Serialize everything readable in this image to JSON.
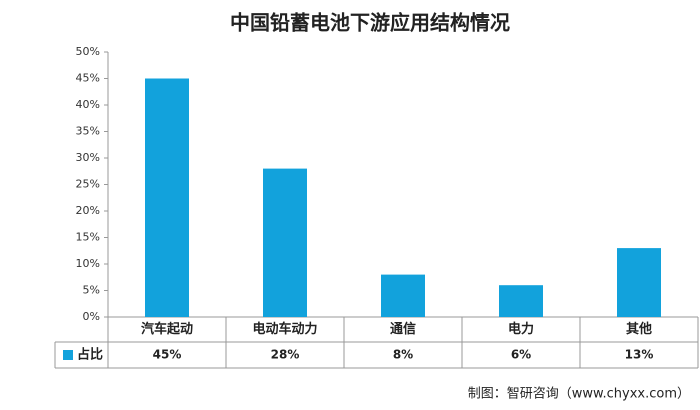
{
  "chart_data": {
    "type": "bar",
    "title": "中国铅蓄电池下游应用结构情况",
    "categories": [
      "汽车起动",
      "电动车动力",
      "通信",
      "电力",
      "其他"
    ],
    "series": [
      {
        "name": "占比",
        "color": "#12a2dc",
        "values": [
          45,
          28,
          8,
          6,
          13
        ],
        "value_labels": [
          "45%",
          "28%",
          "8%",
          "6%",
          "13%"
        ]
      }
    ],
    "ylim": [
      0,
      50
    ],
    "yticks": [
      {
        "value": 0,
        "label": "0%"
      },
      {
        "value": 5,
        "label": "5%"
      },
      {
        "value": 10,
        "label": "10%"
      },
      {
        "value": 15,
        "label": "15%"
      },
      {
        "value": 20,
        "label": "20%"
      },
      {
        "value": 25,
        "label": "25%"
      },
      {
        "value": 30,
        "label": "30%"
      },
      {
        "value": 35,
        "label": "35%"
      },
      {
        "value": 40,
        "label": "40%"
      },
      {
        "value": 45,
        "label": "45%"
      },
      {
        "value": 50,
        "label": "50%"
      }
    ],
    "grid": false,
    "source": "制图：智研咨询（www.chyxx.com）"
  }
}
